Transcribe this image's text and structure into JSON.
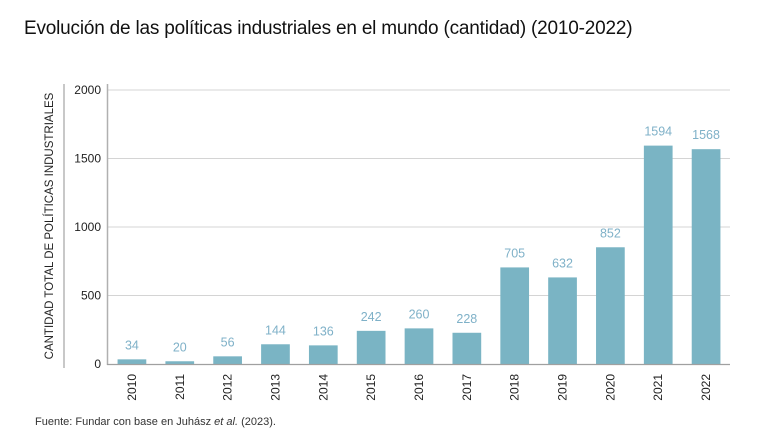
{
  "chart_data": {
    "type": "bar",
    "title": "Evolución de las políticas industriales en el mundo (cantidad) (2010-2022)",
    "xlabel": "",
    "ylabel": "CANTIDAD TOTAL DE POLÍTICAS INDUSTRIALES",
    "categories": [
      "2010",
      "2011",
      "2012",
      "2013",
      "2014",
      "2015",
      "2016",
      "2017",
      "2018",
      "2019",
      "2020",
      "2021",
      "2022"
    ],
    "values": [
      34,
      20,
      56,
      144,
      136,
      242,
      260,
      228,
      705,
      632,
      852,
      1594,
      1568
    ],
    "ylim": [
      0,
      2000
    ],
    "yticks": [
      0,
      500,
      1000,
      1500,
      2000
    ],
    "grid": true,
    "bar_color": "#7ab4c4",
    "label_color": "#7fb1c8",
    "source_prefix": "Fuente: Fundar con base en Juhász ",
    "source_italic": "et al.",
    "source_suffix": " (2023)."
  }
}
